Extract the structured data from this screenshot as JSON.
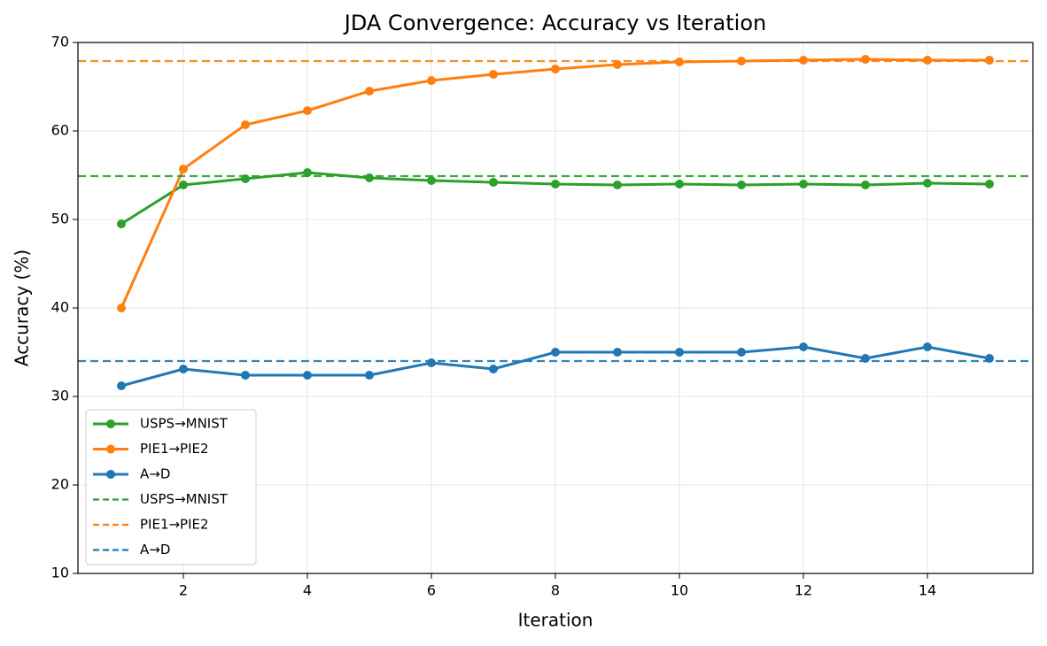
{
  "chart_data": {
    "type": "line",
    "title": "JDA Convergence: Accuracy vs Iteration",
    "x_label": "Iteration",
    "y_label": "Accuracy (%)",
    "x": [
      1,
      2,
      3,
      4,
      5,
      6,
      7,
      8,
      9,
      10,
      11,
      12,
      13,
      14,
      15
    ],
    "series": [
      {
        "name": "USPS→MNIST",
        "color": "#2ca02c",
        "values": [
          49.5,
          53.9,
          54.6,
          55.3,
          54.7,
          54.4,
          54.2,
          54.0,
          53.9,
          54.0,
          53.9,
          54.0,
          53.9,
          54.1,
          54.0
        ]
      },
      {
        "name": "PIE1→PIE2",
        "color": "#ff7f0e",
        "values": [
          40.0,
          55.7,
          60.7,
          62.3,
          64.5,
          65.7,
          66.4,
          67.0,
          67.5,
          67.8,
          67.9,
          68.0,
          68.1,
          68.0,
          68.0
        ]
      },
      {
        "name": "A→D",
        "color": "#1f77b4",
        "values": [
          31.2,
          33.1,
          32.4,
          32.4,
          32.4,
          33.8,
          33.1,
          35.0,
          35.0,
          35.0,
          35.0,
          35.6,
          34.3,
          35.6,
          34.3
        ]
      }
    ],
    "reference_lines": [
      {
        "name": "USPS→MNIST",
        "color": "#2ca02c",
        "value": 54.9
      },
      {
        "name": "PIE1→PIE2",
        "color": "#ff7f0e",
        "value": 67.9
      },
      {
        "name": "A→D",
        "color": "#1f77b4",
        "value": 34.0
      }
    ],
    "xlim": [
      0.3,
      15.7
    ],
    "xticks": [
      2,
      4,
      6,
      8,
      10,
      12,
      14
    ],
    "ylim": [
      10,
      70
    ],
    "yticks": [
      10,
      20,
      30,
      40,
      50,
      60,
      70
    ],
    "grid": true,
    "legend": "lower left"
  }
}
